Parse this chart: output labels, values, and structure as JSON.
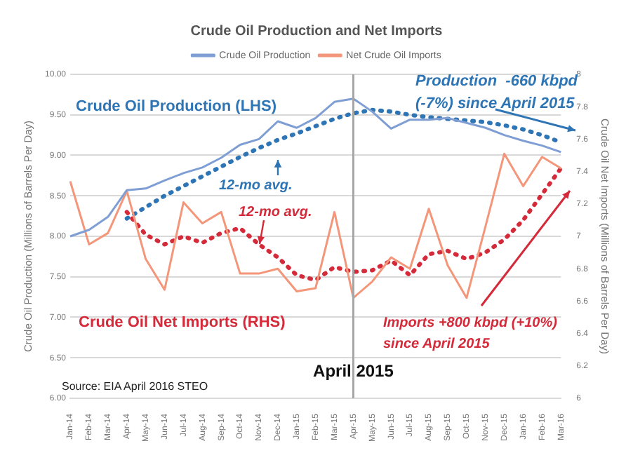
{
  "chart_data": {
    "type": "line",
    "title": "Crude Oil Production and Net Imports",
    "ylabel": "Crude Oil Production (Millions of Barrels Per Day)",
    "y2label": "Crude Oil Net Imports (Millions of Barrels Per Day)",
    "categories": [
      "Jan-14",
      "Feb-14",
      "Mar-14",
      "Apr-14",
      "May-14",
      "Jun-14",
      "Jul-14",
      "Aug-14",
      "Sep-14",
      "Oct-14",
      "Nov-14",
      "Dec-14",
      "Jan-15",
      "Feb-15",
      "Mar-15",
      "Apr-15",
      "May-15",
      "Jun-15",
      "Jul-15",
      "Aug-15",
      "Sep-15",
      "Oct-15",
      "Nov-15",
      "Dec-15",
      "Jan-16",
      "Feb-16",
      "Mar-16"
    ],
    "series": [
      {
        "name": "Crude Oil Production",
        "color": "#7f9fd4",
        "values": [
          8.0,
          8.08,
          8.24,
          8.57,
          8.59,
          8.69,
          8.78,
          8.85,
          8.97,
          9.13,
          9.2,
          9.42,
          9.34,
          9.46,
          9.66,
          9.7,
          9.54,
          9.33,
          9.44,
          9.44,
          9.46,
          9.4,
          9.34,
          9.25,
          9.18,
          9.12,
          9.04
        ]
      },
      {
        "name": "Net Crude Oil Imports",
        "color": "#f4967a",
        "axis": "y2",
        "values": [
          7.34,
          6.95,
          7.02,
          7.28,
          6.86,
          6.67,
          7.21,
          7.08,
          7.15,
          6.77,
          6.77,
          6.8,
          6.66,
          6.68,
          7.15,
          6.62,
          6.72,
          6.87,
          6.8,
          7.17,
          6.82,
          6.62,
          7.06,
          7.51,
          7.31,
          7.49,
          7.42
        ]
      },
      {
        "color": "#2e75b6",
        "line_style": "dotted",
        "values": [
          null,
          null,
          null,
          8.22,
          8.36,
          8.5,
          8.62,
          8.74,
          8.86,
          8.98,
          9.09,
          9.19,
          9.27,
          9.36,
          9.45,
          9.52,
          9.56,
          9.54,
          9.5,
          9.47,
          9.45,
          9.43,
          9.41,
          9.37,
          9.32,
          9.25,
          9.16
        ]
      },
      {
        "color": "#d42a3a",
        "line_style": "dotted",
        "axis": "y2",
        "values": [
          null,
          null,
          null,
          7.15,
          7.01,
          6.95,
          7.0,
          6.96,
          7.02,
          7.05,
          6.95,
          6.87,
          6.76,
          6.73,
          6.81,
          6.78,
          6.79,
          6.85,
          6.76,
          6.89,
          6.91,
          6.86,
          6.9,
          6.98,
          7.1,
          7.26,
          7.42
        ]
      }
    ],
    "ylim": [
      6,
      10
    ],
    "yticks": [
      {
        "value": 6,
        "label": "6.00"
      },
      {
        "value": 6.5,
        "label": "6.50"
      },
      {
        "value": 7,
        "label": "7.00"
      },
      {
        "value": 7.5,
        "label": "7.50"
      },
      {
        "value": 8,
        "label": "8.00"
      },
      {
        "value": 8.5,
        "label": "8.50"
      },
      {
        "value": 9,
        "label": "9.00"
      },
      {
        "value": 9.5,
        "label": "9.50"
      },
      {
        "value": 10,
        "label": "10.00"
      }
    ],
    "y2lim": [
      6,
      8
    ],
    "y2ticks": [
      6,
      6.2,
      6.4,
      6.6,
      6.8,
      7,
      7.2,
      7.4,
      7.6,
      7.8,
      8
    ],
    "ref_lines": [
      {
        "axis": "x",
        "value": "Apr-15",
        "label": "April 2015",
        "color": "#a6a6a6"
      }
    ],
    "annotations": [
      "Crude Oil Production (LHS)",
      "12-mo avg.",
      "Production  -660 kbpd (-7%) since April 2015",
      "12-mo avg.",
      "Crude Oil Net Imports (RHS)",
      "Imports +800 kbpd (+10%) since April 2015",
      "Source: EIA April 2016 STEO"
    ],
    "grid": "y",
    "legend": "top",
    "marker": "none",
    "line_style": "solid"
  }
}
